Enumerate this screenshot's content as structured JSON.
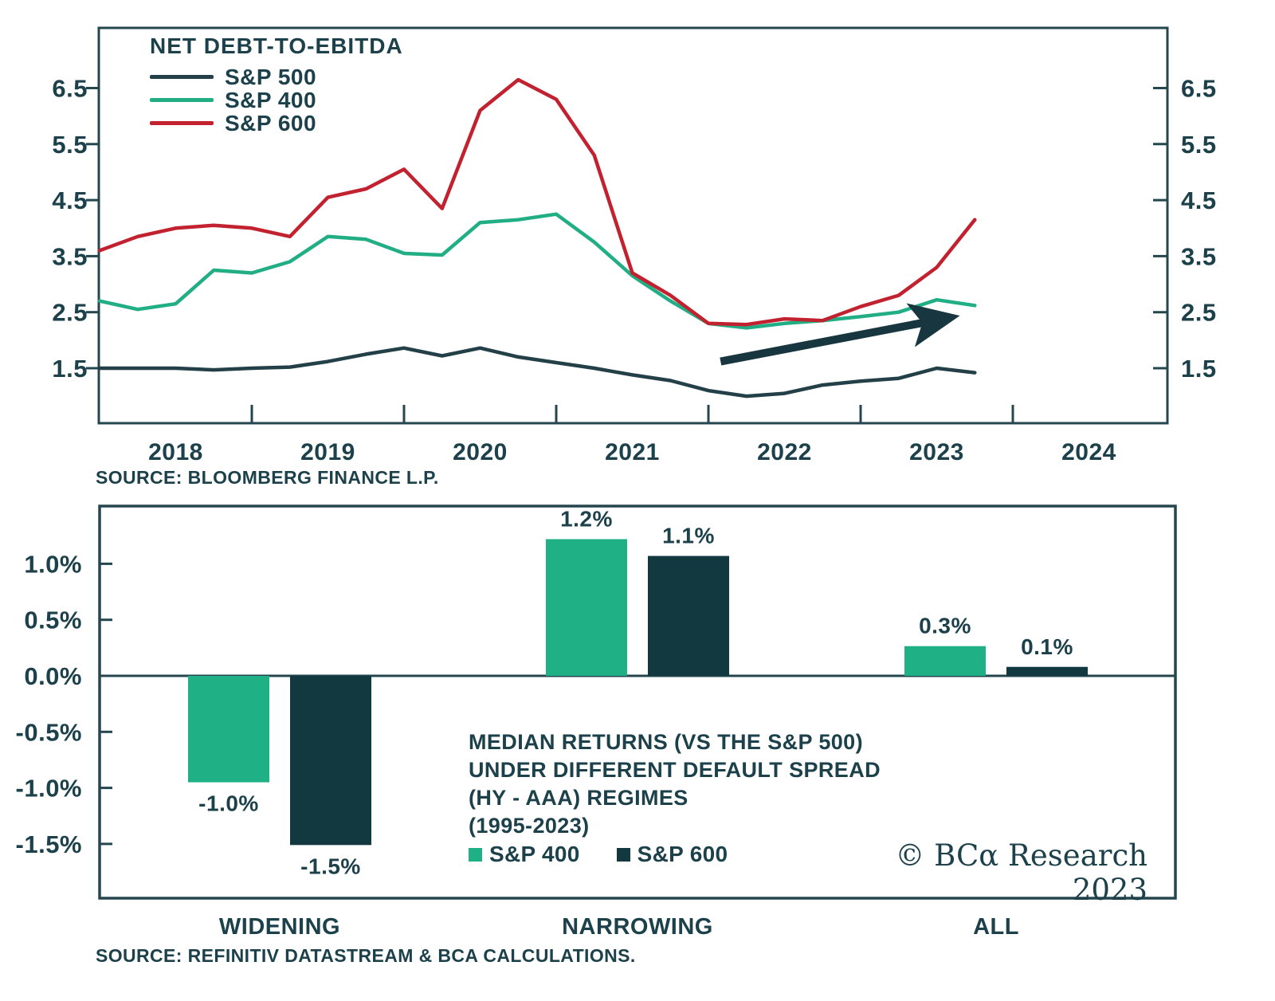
{
  "logo": {
    "text": "© BCα Research 2023"
  },
  "chart_data": [
    {
      "type": "line",
      "title": "NET DEBT-TO-EBITDA",
      "source": "SOURCE: BLOOMBERG FINANCE L.P.",
      "xlim": [
        2018,
        2025
      ],
      "ylim": [
        0.5,
        7.55
      ],
      "y_ticks": [
        6.5,
        5.5,
        4.5,
        3.5,
        2.5,
        1.5
      ],
      "x_tick_years": [
        2019,
        2020,
        2021,
        2022,
        2023,
        2024
      ],
      "x_label_years": [
        "2018",
        "2019",
        "2020",
        "2021",
        "2022",
        "2023",
        "2024"
      ],
      "x": [
        2018.0,
        2018.25,
        2018.5,
        2018.75,
        2019.0,
        2019.25,
        2019.5,
        2019.75,
        2020.0,
        2020.25,
        2020.5,
        2020.75,
        2021.0,
        2021.25,
        2021.5,
        2021.75,
        2022.0,
        2022.25,
        2022.5,
        2022.75,
        2023.0,
        2023.25,
        2023.5,
        2023.75
      ],
      "series": [
        {
          "name": "S&P 500",
          "color": "#233f48",
          "values": [
            1.5,
            1.5,
            1.5,
            1.47,
            1.5,
            1.52,
            1.62,
            1.75,
            1.86,
            1.72,
            1.86,
            1.7,
            1.6,
            1.5,
            1.38,
            1.28,
            1.1,
            1.0,
            1.05,
            1.2,
            1.27,
            1.32,
            1.5,
            1.42
          ]
        },
        {
          "name": "S&P 400",
          "color": "#21ae85",
          "values": [
            2.7,
            2.55,
            2.65,
            3.25,
            3.2,
            3.4,
            3.85,
            3.8,
            3.55,
            3.52,
            4.1,
            4.15,
            4.25,
            3.75,
            3.15,
            2.7,
            2.3,
            2.22,
            2.3,
            2.35,
            2.42,
            2.5,
            2.72,
            2.62
          ]
        },
        {
          "name": "S&P 600",
          "color": "#c2212f",
          "values": [
            3.6,
            3.85,
            4.0,
            4.05,
            4.0,
            3.85,
            4.55,
            4.7,
            5.05,
            4.35,
            6.1,
            6.65,
            6.3,
            5.3,
            3.2,
            2.8,
            2.3,
            2.28,
            2.38,
            2.35,
            2.6,
            2.8,
            3.3,
            4.15
          ]
        }
      ],
      "arrow": {
        "x_start": 2022.08,
        "v_start": 1.62,
        "x_end": 2023.58,
        "v_end": 2.4
      }
    },
    {
      "type": "bar",
      "categories": [
        "WIDENING",
        "NARROWING",
        "ALL"
      ],
      "series": [
        {
          "name": "S&P 400",
          "color": "#1fb185",
          "values": [
            -1.0,
            1.2,
            0.3
          ],
          "values_drawn": [
            -0.95,
            1.22,
            0.265
          ],
          "labels": [
            "-1.0%",
            "1.2%",
            "0.3%"
          ]
        },
        {
          "name": "S&P 600",
          "color": "#123840",
          "values": [
            -1.5,
            1.1,
            0.1
          ],
          "values_drawn": [
            -1.51,
            1.07,
            0.08
          ],
          "labels": [
            "-1.5%",
            "1.1%",
            "0.1%"
          ]
        }
      ],
      "y_ticks": [
        1.0,
        0.5,
        0.0,
        -0.5,
        -1.0,
        -1.5
      ],
      "y_tick_labels": [
        "1.0%",
        "0.5%",
        "0.0%",
        "-0.5%",
        "-1.0%",
        "-1.5%"
      ],
      "ylim": [
        -2.0,
        1.51
      ],
      "annotation": {
        "lines": [
          "MEDIAN RETURNS (VS THE S&P 500)",
          "UNDER DIFFERENT  DEFAULT SPREAD",
          "(HY - AAA) REGIMES",
          "(1995-2023)"
        ]
      },
      "source": "SOURCE: REFINITIV DATASTREAM & BCA CALCULATIONS."
    }
  ]
}
